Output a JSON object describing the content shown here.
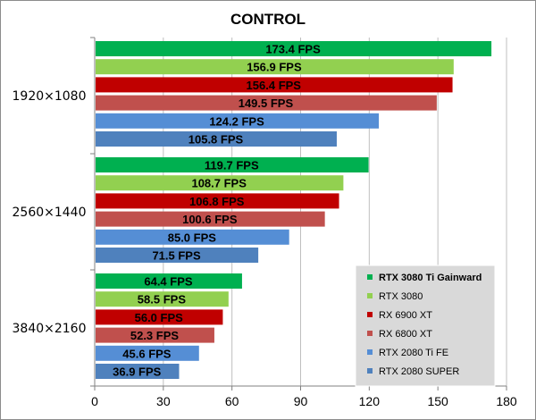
{
  "chart_data": {
    "type": "bar",
    "orientation": "horizontal",
    "title": "CONTROL",
    "categories": [
      "1920×1080",
      "2560×1440",
      "3840×2160"
    ],
    "xlim": [
      0,
      180
    ],
    "xticks": [
      0,
      30,
      60,
      90,
      120,
      150,
      180
    ],
    "grid": true,
    "value_suffix": " FPS",
    "legend_position": "bottom-right",
    "series": [
      {
        "name": "RTX 3080 Ti Gainward",
        "color": "#00b050",
        "values": [
          173.4,
          119.7,
          64.4
        ],
        "bold_legend": true
      },
      {
        "name": "RTX 3080",
        "color": "#92d050",
        "values": [
          156.9,
          108.7,
          58.5
        ]
      },
      {
        "name": "RX 6900 XT",
        "color": "#c00000",
        "values": [
          156.4,
          106.8,
          56.0
        ]
      },
      {
        "name": "RX 6800 XT",
        "color": "#c0504d",
        "values": [
          149.5,
          100.6,
          52.3
        ]
      },
      {
        "name": "RTX 2080 Ti FE",
        "color": "#558ed5",
        "values": [
          124.2,
          85.0,
          45.6
        ]
      },
      {
        "name": "RTX 2080 SUPER",
        "color": "#4f81bd",
        "values": [
          105.8,
          71.5,
          36.9
        ]
      }
    ]
  }
}
